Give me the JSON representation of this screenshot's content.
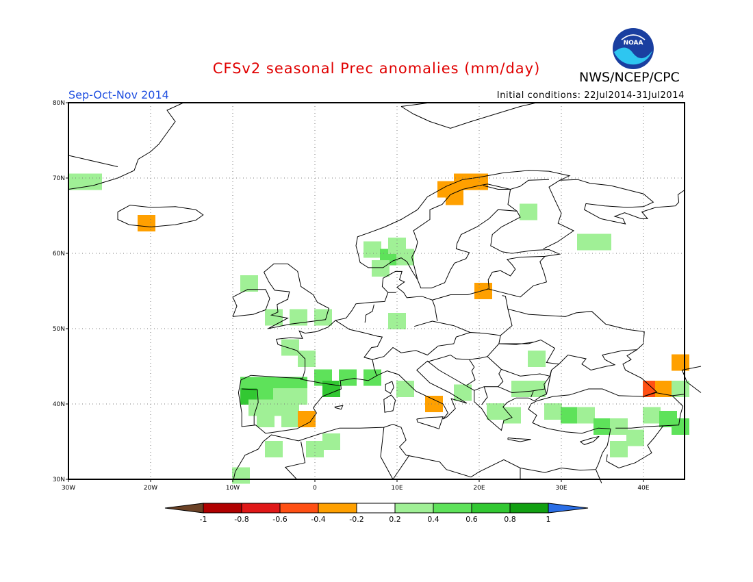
{
  "title": "CFSv2 seasonal Prec anomalies (mm/day)",
  "org": "NWS/NCEP/CPC",
  "season": "Sep-Oct-Nov 2014",
  "initial_conditions": "Initial conditions: 22Jul2014-31Jul2014",
  "logo_text": "NOAA",
  "map": {
    "lon_range": [
      -30,
      45
    ],
    "lat_range": [
      30,
      80
    ],
    "lon_ticks": [
      {
        "value": -30,
        "label": "30W"
      },
      {
        "value": -20,
        "label": "20W"
      },
      {
        "value": -10,
        "label": "10W"
      },
      {
        "value": 0,
        "label": "0"
      },
      {
        "value": 10,
        "label": "10E"
      },
      {
        "value": 20,
        "label": "20E"
      },
      {
        "value": 30,
        "label": "30E"
      },
      {
        "value": 40,
        "label": "40E"
      }
    ],
    "lat_ticks": [
      {
        "value": 30,
        "label": "30N"
      },
      {
        "value": 40,
        "label": "40N"
      },
      {
        "value": 50,
        "label": "50N"
      },
      {
        "value": 60,
        "label": "60N"
      },
      {
        "value": 70,
        "label": "70N"
      },
      {
        "value": 80,
        "label": "80N"
      }
    ],
    "grid": "dotted",
    "anomaly_cells": [
      {
        "lon": -29,
        "lat": 69.5,
        "value": 0.3
      },
      {
        "lon": -27,
        "lat": 69.5,
        "value": 0.3
      },
      {
        "lon": -20.5,
        "lat": 64,
        "value": -0.3
      },
      {
        "lon": -8,
        "lat": 56,
        "value": 0.3
      },
      {
        "lon": -5,
        "lat": 51.5,
        "value": 0.3
      },
      {
        "lon": -2,
        "lat": 51.5,
        "value": 0.3
      },
      {
        "lon": 1,
        "lat": 51.5,
        "value": 0.3
      },
      {
        "lon": -3,
        "lat": 47.5,
        "value": 0.3
      },
      {
        "lon": -1,
        "lat": 46,
        "value": 0.3
      },
      {
        "lon": -8,
        "lat": 42.5,
        "value": 0.5
      },
      {
        "lon": -6,
        "lat": 42.5,
        "value": 0.5
      },
      {
        "lon": -4,
        "lat": 42.5,
        "value": 0.5
      },
      {
        "lon": -2,
        "lat": 42.5,
        "value": 0.5
      },
      {
        "lon": -8,
        "lat": 41,
        "value": 0.6
      },
      {
        "lon": -6,
        "lat": 41,
        "value": 0.4
      },
      {
        "lon": -4,
        "lat": 41,
        "value": 0.3
      },
      {
        "lon": -2,
        "lat": 41,
        "value": 0.3
      },
      {
        "lon": -7,
        "lat": 39.5,
        "value": 0.3
      },
      {
        "lon": -5,
        "lat": 39.5,
        "value": 0.3
      },
      {
        "lon": -3,
        "lat": 39.5,
        "value": 0.3
      },
      {
        "lon": -6,
        "lat": 38,
        "value": 0.3
      },
      {
        "lon": -3,
        "lat": 38,
        "value": 0.3
      },
      {
        "lon": -1,
        "lat": 38,
        "value": -0.3
      },
      {
        "lon": 1,
        "lat": 43.5,
        "value": 0.5
      },
      {
        "lon": 2,
        "lat": 42,
        "value": 0.7
      },
      {
        "lon": 4,
        "lat": 43.5,
        "value": 0.5
      },
      {
        "lon": 7,
        "lat": 43.5,
        "value": 0.4
      },
      {
        "lon": -5,
        "lat": 34,
        "value": 0.3
      },
      {
        "lon": 0,
        "lat": 34,
        "value": 0.3
      },
      {
        "lon": 2,
        "lat": 35,
        "value": 0.3
      },
      {
        "lon": -9,
        "lat": 30.5,
        "value": 0.3
      },
      {
        "lon": 7,
        "lat": 60.5,
        "value": 0.3
      },
      {
        "lon": 9,
        "lat": 59.5,
        "value": 0.4
      },
      {
        "lon": 11,
        "lat": 59.5,
        "value": 0.3
      },
      {
        "lon": 10,
        "lat": 61,
        "value": 0.3
      },
      {
        "lon": 8,
        "lat": 58,
        "value": 0.3
      },
      {
        "lon": 16,
        "lat": 68.5,
        "value": -0.3
      },
      {
        "lon": 18,
        "lat": 69.5,
        "value": -0.3
      },
      {
        "lon": 20,
        "lat": 69.5,
        "value": -0.3
      },
      {
        "lon": 17,
        "lat": 67.5,
        "value": -0.3
      },
      {
        "lon": 20.5,
        "lat": 55,
        "value": -0.3
      },
      {
        "lon": 26,
        "lat": 65.5,
        "value": 0.3
      },
      {
        "lon": 33,
        "lat": 61.5,
        "value": 0.3
      },
      {
        "lon": 35,
        "lat": 61.5,
        "value": 0.3
      },
      {
        "lon": 10,
        "lat": 51,
        "value": 0.3
      },
      {
        "lon": 11,
        "lat": 42,
        "value": 0.3
      },
      {
        "lon": 14.5,
        "lat": 40,
        "value": -0.3
      },
      {
        "lon": 18,
        "lat": 41.5,
        "value": 0.3
      },
      {
        "lon": 22,
        "lat": 39,
        "value": 0.3
      },
      {
        "lon": 24,
        "lat": 38.5,
        "value": 0.3
      },
      {
        "lon": 25,
        "lat": 42,
        "value": 0.3
      },
      {
        "lon": 27,
        "lat": 42,
        "value": 0.3
      },
      {
        "lon": 27,
        "lat": 46,
        "value": 0.3
      },
      {
        "lon": 29,
        "lat": 39,
        "value": 0.3
      },
      {
        "lon": 31,
        "lat": 38.5,
        "value": 0.4
      },
      {
        "lon": 33,
        "lat": 38.5,
        "value": 0.3
      },
      {
        "lon": 35,
        "lat": 37,
        "value": 0.4
      },
      {
        "lon": 37,
        "lat": 37,
        "value": 0.3
      },
      {
        "lon": 39,
        "lat": 35.5,
        "value": 0.3
      },
      {
        "lon": 41,
        "lat": 38.5,
        "value": 0.3
      },
      {
        "lon": 43,
        "lat": 38,
        "value": 0.4
      },
      {
        "lon": 44.5,
        "lat": 37,
        "value": 0.4
      },
      {
        "lon": 37,
        "lat": 34,
        "value": 0.3
      },
      {
        "lon": 41,
        "lat": 42,
        "value": -0.6
      },
      {
        "lon": 42.5,
        "lat": 42,
        "value": -0.3
      },
      {
        "lon": 44.5,
        "lat": 45.5,
        "value": -0.3
      },
      {
        "lon": 44.5,
        "lat": 42,
        "value": 0.3
      }
    ]
  },
  "colorbar": {
    "labels": [
      "-1",
      "-0.8",
      "-0.6",
      "-0.4",
      "-0.2",
      "0.2",
      "0.4",
      "0.6",
      "0.8",
      "1"
    ],
    "colors": {
      "below_min": "#6b4226",
      "bins": [
        "#b00000",
        "#e01818",
        "#ff5014",
        "#ffa000",
        "#ffffff",
        "#a0f096",
        "#5ee25a",
        "#32c832",
        "#12a012"
      ],
      "above_max": "#2a6ee6"
    }
  },
  "colors": {
    "title": "#e00000",
    "season": "#1f4fe0",
    "coast": "#000000",
    "grid": "#7a7a7a"
  }
}
